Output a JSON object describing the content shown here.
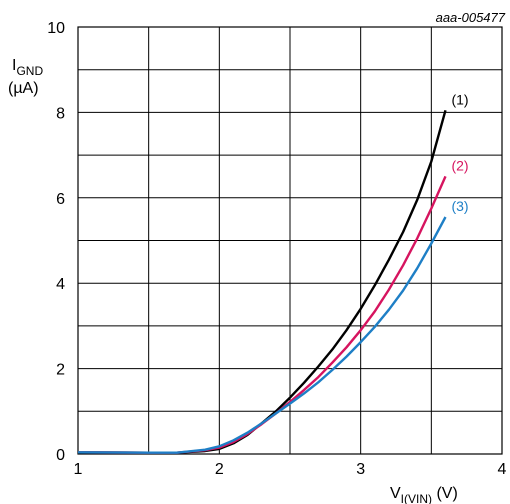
{
  "chart_data": {
    "type": "line",
    "code": "aaa-005477",
    "ylabel_main": "I",
    "ylabel_sub": "GND",
    "ylabel_unit": "(µA)",
    "xlabel_main": "V",
    "xlabel_sub": "I(VIN)",
    "xlabel_unit": " (V)",
    "xlim": [
      1,
      4
    ],
    "ylim": [
      0,
      10
    ],
    "xticks": [
      1,
      2,
      3,
      4
    ],
    "yticks": [
      0,
      2,
      4,
      6,
      8,
      10
    ],
    "grid": true,
    "series": [
      {
        "name": "(1)",
        "color": "#000000",
        "x": [
          1.0,
          1.5,
          1.7,
          1.9,
          2.0,
          2.1,
          2.2,
          2.3,
          2.4,
          2.5,
          2.6,
          2.7,
          2.8,
          2.9,
          3.0,
          3.1,
          3.2,
          3.3,
          3.4,
          3.5,
          3.6
        ],
        "y": [
          0.04,
          0.03,
          0.03,
          0.07,
          0.12,
          0.25,
          0.45,
          0.72,
          1.0,
          1.32,
          1.67,
          2.05,
          2.45,
          2.9,
          3.4,
          3.95,
          4.55,
          5.2,
          5.95,
          6.85,
          8.05
        ]
      },
      {
        "name": "(2)",
        "color": "#d6145f",
        "x": [
          1.0,
          1.5,
          1.7,
          1.9,
          2.0,
          2.1,
          2.2,
          2.3,
          2.4,
          2.5,
          2.6,
          2.7,
          2.8,
          2.9,
          3.0,
          3.1,
          3.2,
          3.3,
          3.4,
          3.5,
          3.6
        ],
        "y": [
          0.04,
          0.03,
          0.03,
          0.09,
          0.15,
          0.28,
          0.47,
          0.7,
          0.95,
          1.22,
          1.5,
          1.8,
          2.14,
          2.5,
          2.9,
          3.34,
          3.85,
          4.42,
          5.05,
          5.75,
          6.5
        ]
      },
      {
        "name": "(3)",
        "color": "#1e7fc6",
        "x": [
          1.0,
          1.5,
          1.7,
          1.9,
          2.0,
          2.1,
          2.2,
          2.3,
          2.4,
          2.5,
          2.6,
          2.7,
          2.8,
          2.9,
          3.0,
          3.1,
          3.2,
          3.3,
          3.4,
          3.5,
          3.6
        ],
        "y": [
          0.04,
          0.03,
          0.03,
          0.1,
          0.18,
          0.32,
          0.5,
          0.72,
          0.95,
          1.18,
          1.42,
          1.68,
          1.97,
          2.28,
          2.62,
          2.98,
          3.38,
          3.83,
          4.35,
          4.93,
          5.55
        ]
      }
    ]
  }
}
